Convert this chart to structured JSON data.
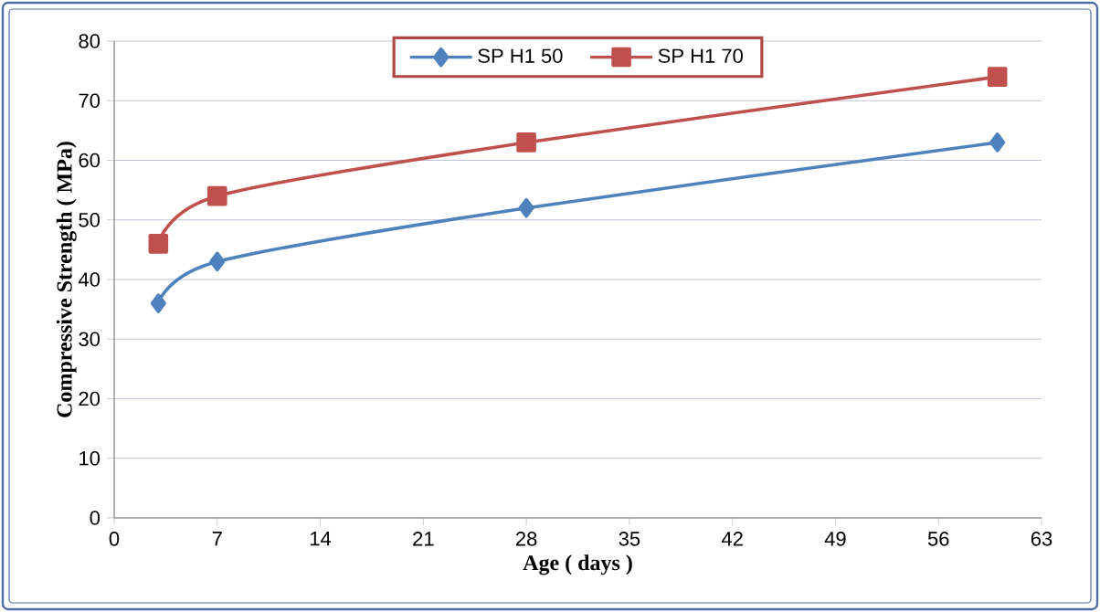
{
  "chart_data": {
    "type": "line",
    "xlabel": "Age ( days )",
    "ylabel": "Compressive Strength ( MPa)",
    "x": [
      3,
      7,
      28,
      60
    ],
    "series": [
      {
        "name": "SP H1 50",
        "color": "#4f81bd",
        "marker": "diamond",
        "values": [
          36,
          43,
          52,
          63
        ]
      },
      {
        "name": "SP H1 70",
        "color": "#c0504d",
        "marker": "square",
        "values": [
          46,
          54,
          63,
          74
        ]
      }
    ],
    "xlim": [
      0,
      63
    ],
    "xticks": [
      0,
      7,
      14,
      21,
      28,
      35,
      42,
      49,
      56,
      63
    ],
    "ylim": [
      0,
      80
    ],
    "yticks": [
      0,
      10,
      20,
      30,
      40,
      50,
      60,
      70,
      80
    ],
    "grid": "y",
    "legend": "top",
    "line_style": "solid"
  }
}
